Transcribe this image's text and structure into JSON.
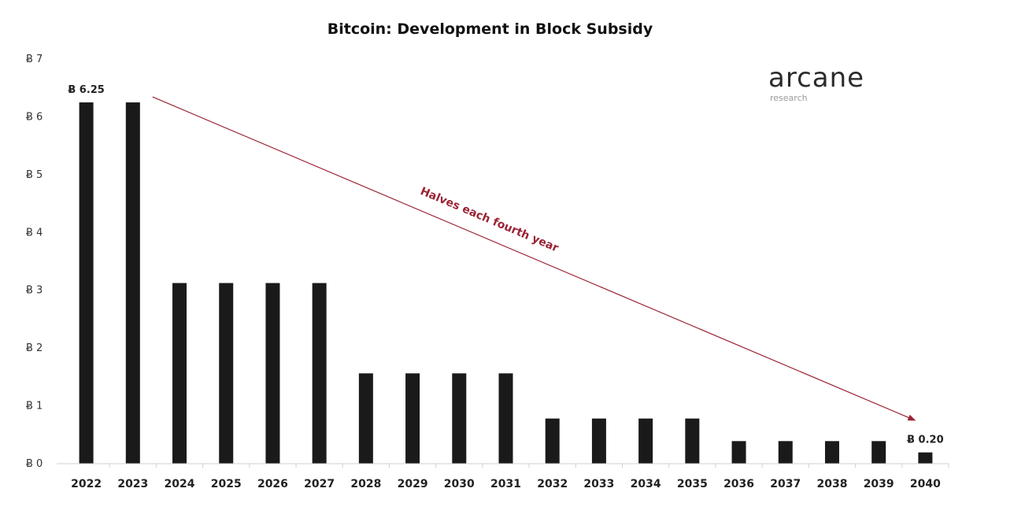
{
  "chart_data": {
    "type": "bar",
    "title": "Bitcoin: Development in Block Subsidy",
    "xlabel": "",
    "ylabel": "",
    "categories": [
      "2022",
      "2023",
      "2024",
      "2025",
      "2026",
      "2027",
      "2028",
      "2029",
      "2030",
      "2031",
      "2032",
      "2033",
      "2034",
      "2035",
      "2036",
      "2037",
      "2038",
      "2039",
      "2040"
    ],
    "values": [
      6.25,
      6.25,
      3.125,
      3.125,
      3.125,
      3.125,
      1.5625,
      1.5625,
      1.5625,
      1.5625,
      0.78125,
      0.78125,
      0.78125,
      0.78125,
      0.390625,
      0.390625,
      0.390625,
      0.390625,
      0.195
    ],
    "ylim": [
      0,
      7
    ],
    "yticks": [
      0,
      1,
      2,
      3,
      4,
      5,
      6,
      7
    ],
    "ytick_labels": [
      "Ƀ 0",
      "Ƀ 1",
      "Ƀ 2",
      "Ƀ 3",
      "Ƀ 4",
      "Ƀ 5",
      "Ƀ 6",
      "Ƀ 7"
    ],
    "data_labels": [
      {
        "category": "2022",
        "text": "Ƀ 6.25"
      },
      {
        "category": "2040",
        "text": "Ƀ 0.20"
      }
    ],
    "annotation": {
      "text": "Halves each fourth year",
      "from_category": "2023",
      "from_value": 6.25,
      "to_category": "2040",
      "to_value": 0.75
    },
    "grid": false,
    "legend": "none",
    "colors": {
      "bar": "#1a1a1a",
      "annotation": "#9b2335",
      "axis": "#d0d0d0"
    }
  },
  "brand": {
    "name": "arcane",
    "tagline": "research"
  }
}
